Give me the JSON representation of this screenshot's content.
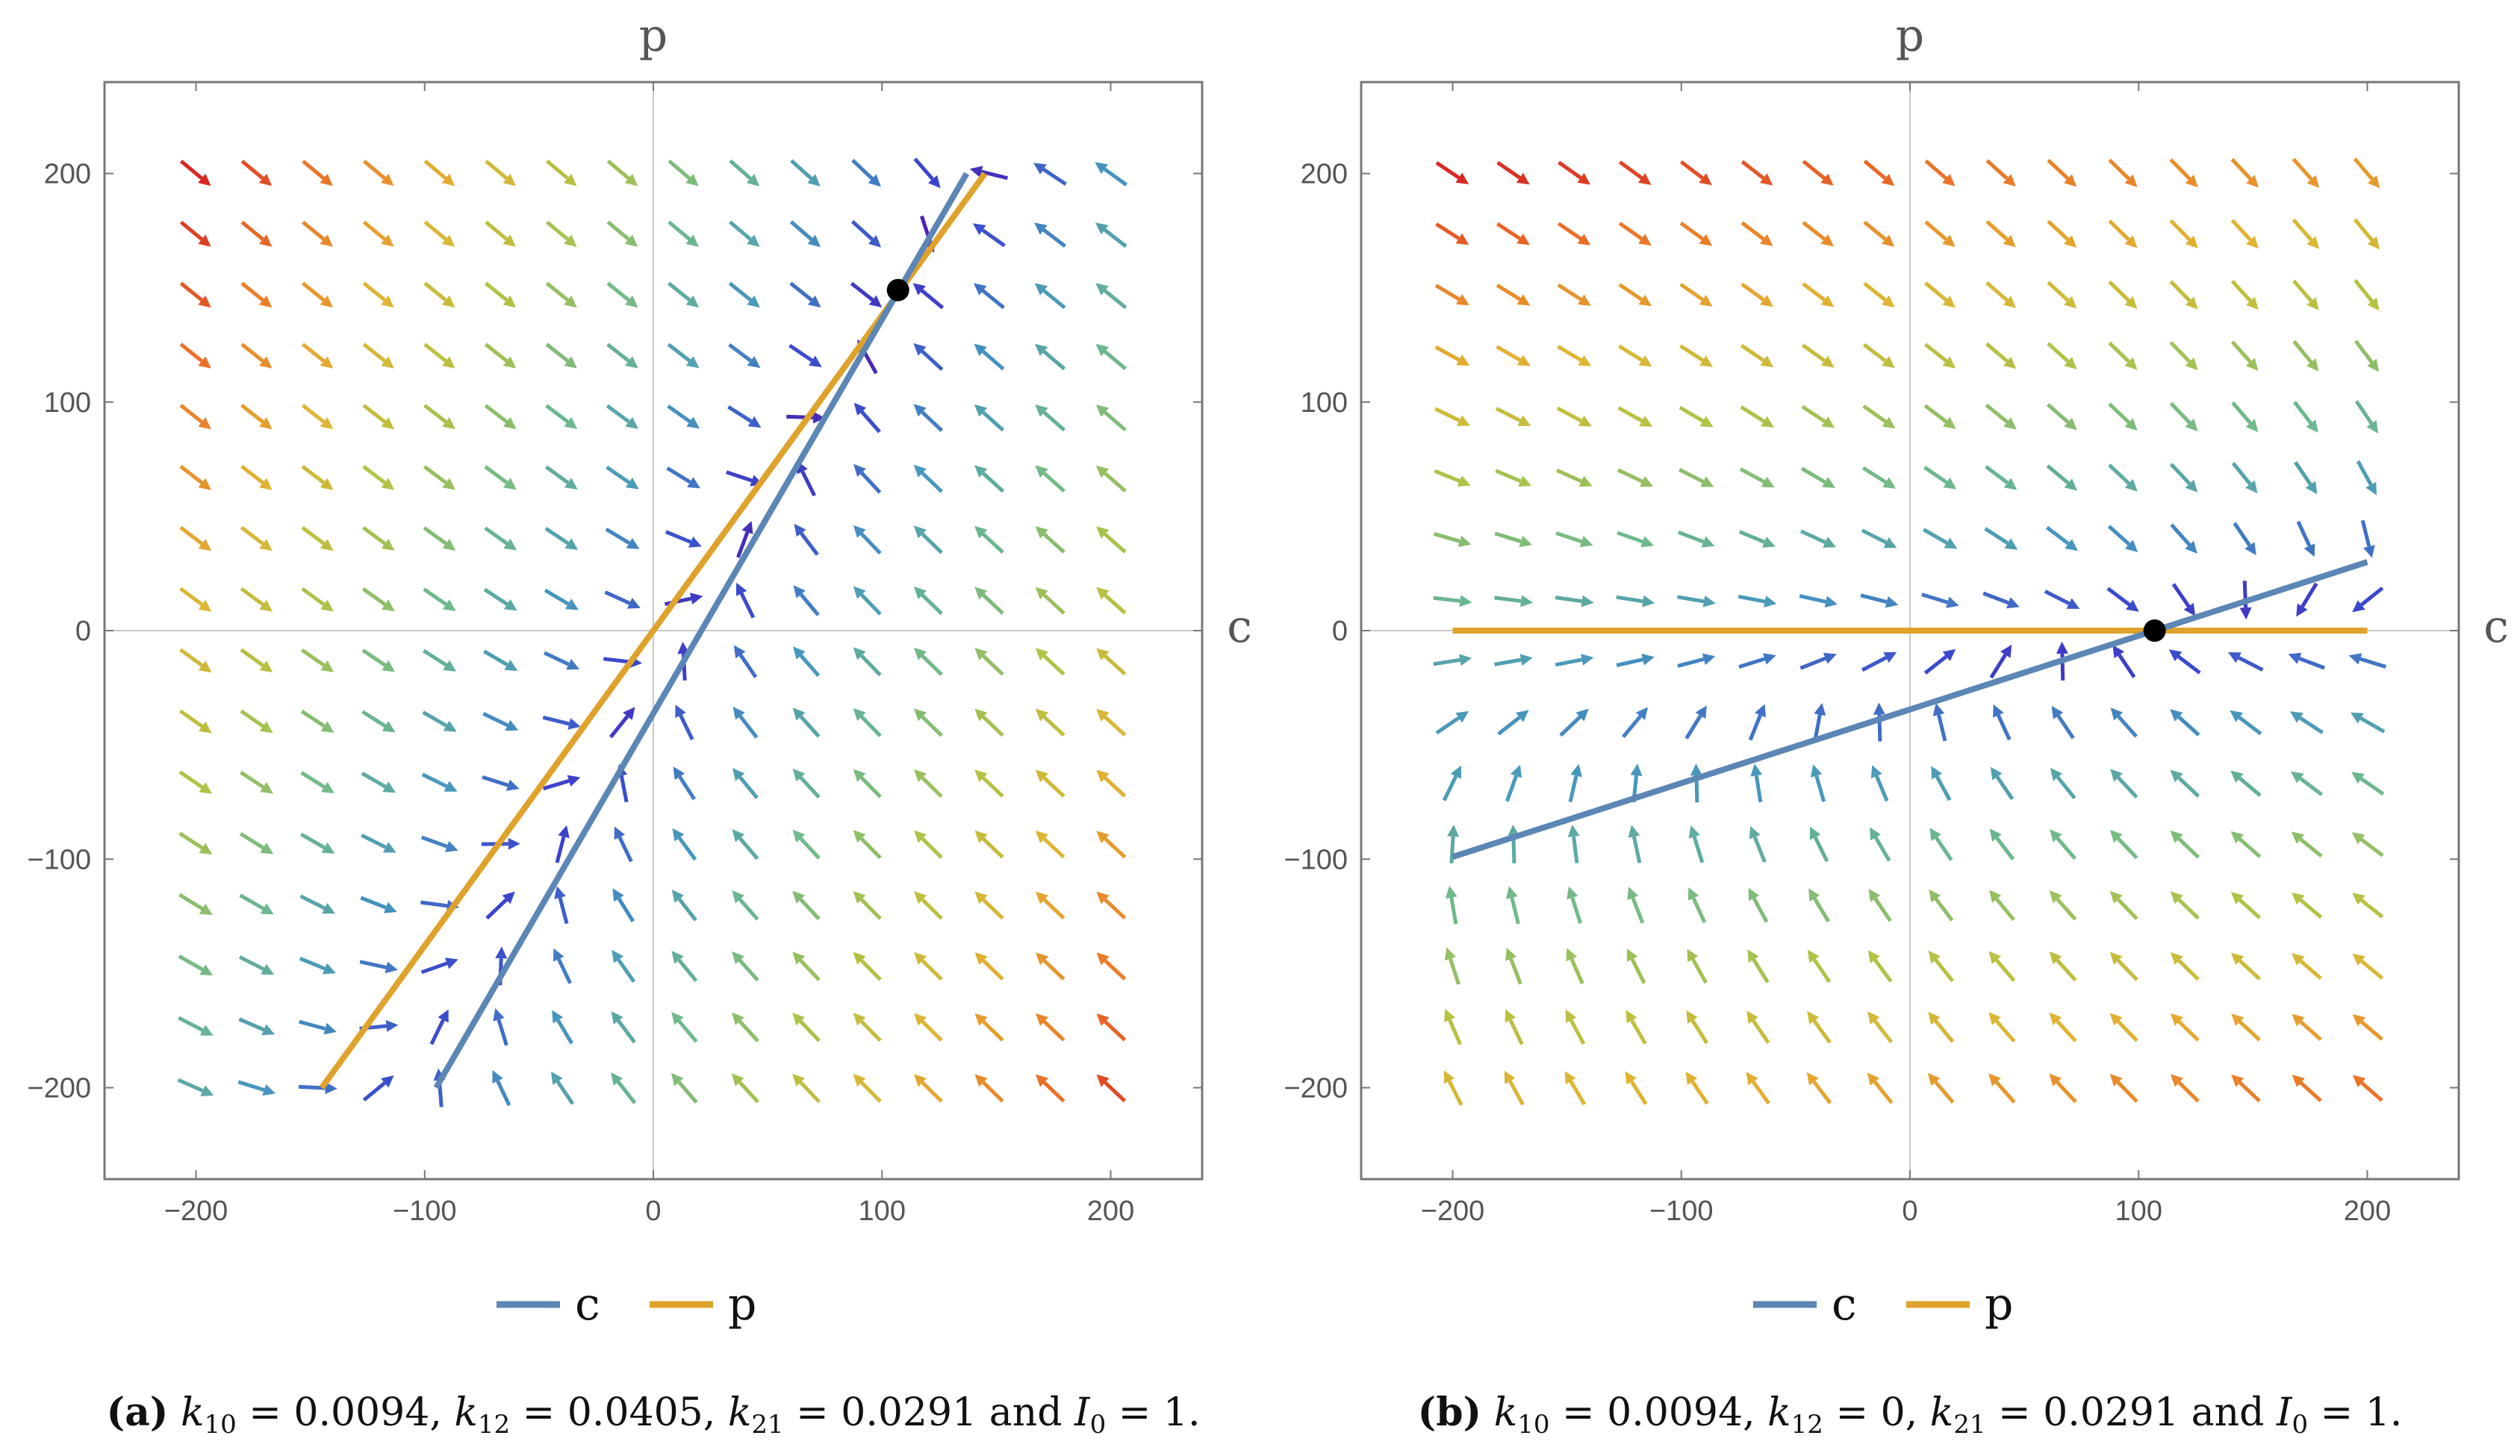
{
  "chart_data": [
    {
      "type": "vector-field",
      "panel_label": "(a)",
      "caption": "(a) k10 = 0.0094, k12 = 0.0405, k21 = 0.0291 and I0 = 1.",
      "caption_parts": {
        "label": "(a)",
        "k10": "0.0094",
        "k12": "0.0405",
        "k21": "0.0291",
        "I0": "1"
      },
      "xlabel": "c",
      "ylabel": "p",
      "xlim": [
        -240,
        240
      ],
      "ylim": [
        -240,
        240
      ],
      "xticks": [
        -200,
        -100,
        0,
        100,
        200
      ],
      "yticks": [
        -200,
        -100,
        0,
        100,
        200
      ],
      "params": {
        "k10": 0.0094,
        "k12": 0.0405,
        "k21": 0.0291,
        "I0": 1
      },
      "grid": false,
      "series": [
        {
          "name": "c",
          "color": "#5b86b5",
          "points": [
            [
              -95,
              -200
            ],
            [
              137,
              200
            ]
          ]
        },
        {
          "name": "p",
          "color": "#dfa22b",
          "points": [
            [
              -145,
              -200
            ],
            [
              145,
              200
            ]
          ]
        }
      ],
      "equilibrium": {
        "c": 107,
        "p": 149
      },
      "legend": {
        "entries": [
          "c",
          "p"
        ],
        "position": "bottom"
      }
    },
    {
      "type": "vector-field",
      "panel_label": "(b)",
      "caption": "(b) k10 = 0.0094, k12 = 0, k21 = 0.0291 and I0 = 1.",
      "caption_parts": {
        "label": "(b)",
        "k10": "0.0094",
        "k12": "0",
        "k21": "0.0291",
        "I0": "1"
      },
      "xlabel": "c",
      "ylabel": "p",
      "xlim": [
        -240,
        240
      ],
      "ylim": [
        -240,
        240
      ],
      "xticks": [
        -200,
        -100,
        0,
        100,
        200
      ],
      "yticks": [
        -200,
        -100,
        0,
        100,
        200
      ],
      "params": {
        "k10": 0.0094,
        "k12": 0,
        "k21": 0.0291,
        "I0": 1
      },
      "grid": false,
      "series": [
        {
          "name": "c",
          "color": "#5b86b5",
          "points": [
            [
              -200,
              -99
            ],
            [
              200,
              30
            ]
          ]
        },
        {
          "name": "p",
          "color": "#dfa22b",
          "points": [
            [
              -200,
              0
            ],
            [
              200,
              0
            ]
          ]
        }
      ],
      "equilibrium": {
        "c": 107,
        "p": 0
      },
      "legend": {
        "entries": [
          "c",
          "p"
        ],
        "position": "bottom"
      }
    }
  ]
}
